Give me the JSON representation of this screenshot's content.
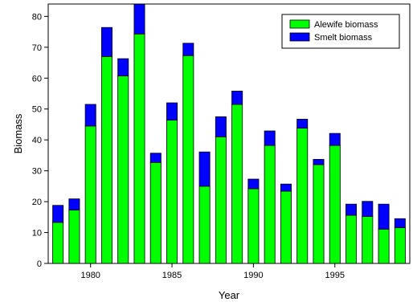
{
  "chart_data": {
    "type": "bar",
    "stacked": true,
    "title": "",
    "xlabel": "Year",
    "ylabel": "Biomass",
    "ylim": [
      0,
      84
    ],
    "xlim": [
      1977.4,
      1999.6
    ],
    "yticks": [
      0,
      10,
      20,
      30,
      40,
      50,
      60,
      70,
      80
    ],
    "xticks": [
      1980,
      1985,
      1990,
      1995
    ],
    "grid": false,
    "legend_position": "top-right",
    "x": [
      1978,
      1979,
      1980,
      1981,
      1982,
      1983,
      1984,
      1985,
      1986,
      1987,
      1988,
      1989,
      1990,
      1991,
      1992,
      1993,
      1994,
      1995,
      1996,
      1997,
      1998,
      1999
    ],
    "series": [
      {
        "name": "Alewife biomass",
        "color": "#00ff00",
        "values": [
          13.3,
          17.3,
          44.5,
          67.0,
          60.7,
          74.3,
          32.7,
          46.4,
          67.3,
          25.0,
          41.0,
          51.5,
          24.2,
          38.2,
          23.4,
          43.8,
          32.0,
          38.2,
          15.6,
          15.2,
          11.1,
          11.6
        ]
      },
      {
        "name": "Smelt biomass",
        "color": "#0000ff",
        "values": [
          5.5,
          3.6,
          7.0,
          9.4,
          5.6,
          9.9,
          3.0,
          5.6,
          4.0,
          11.1,
          6.5,
          4.3,
          3.1,
          4.7,
          2.3,
          2.9,
          1.7,
          3.9,
          3.6,
          4.9,
          8.1,
          2.9
        ]
      }
    ]
  }
}
